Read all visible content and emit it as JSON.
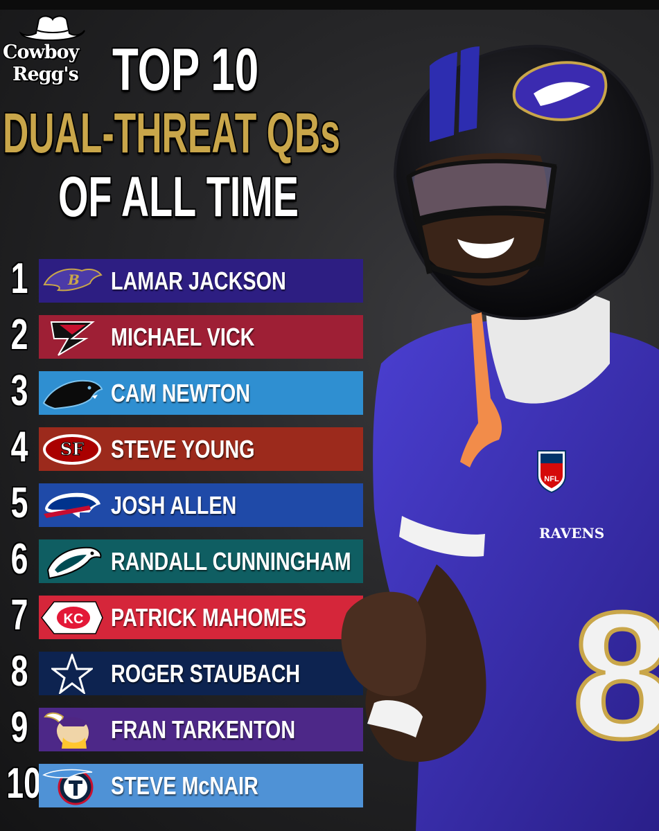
{
  "brand": {
    "line1": "Cowboy",
    "line2": "Regg's",
    "icon": "cowboy-hat-icon"
  },
  "title": {
    "line1": "TOP 10",
    "line2": "DUAL-THREAT QBs",
    "line3": "OF ALL TIME"
  },
  "jersey": {
    "number": "8",
    "wordmark": "RAVENS",
    "shield": "NFL"
  },
  "colors": {
    "gold": "#c9a64a",
    "ravens_purple": "#3a2ea8"
  },
  "players": [
    {
      "rank": "1",
      "name": "LAMAR JACKSON",
      "team_icon": "ravens-logo-icon",
      "color": "#2d1e82"
    },
    {
      "rank": "2",
      "name": "MICHAEL VICK",
      "team_icon": "falcons-logo-icon",
      "color": "#9e1f35"
    },
    {
      "rank": "3",
      "name": "CAM NEWTON",
      "team_icon": "panthers-logo-icon",
      "color": "#2f8fd1"
    },
    {
      "rank": "4",
      "name": "STEVE YOUNG",
      "team_icon": "49ers-logo-icon",
      "color": "#9c2a1c"
    },
    {
      "rank": "5",
      "name": "JOSH ALLEN",
      "team_icon": "bills-logo-icon",
      "color": "#1f4aa8"
    },
    {
      "rank": "6",
      "name": "RANDALL CUNNINGHAM",
      "team_icon": "eagles-logo-icon",
      "color": "#0f5e62"
    },
    {
      "rank": "7",
      "name": "PATRICK MAHOMES",
      "team_icon": "chiefs-logo-icon",
      "color": "#d5263a"
    },
    {
      "rank": "8",
      "name": "ROGER STAUBACH",
      "team_icon": "cowboys-star-icon",
      "color": "#0d2350"
    },
    {
      "rank": "9",
      "name": "FRAN TARKENTON",
      "team_icon": "vikings-logo-icon",
      "color": "#4d2888"
    },
    {
      "rank": "10",
      "name": "STEVE McNAIR",
      "team_icon": "titans-logo-icon",
      "color": "#4f92d6"
    }
  ]
}
